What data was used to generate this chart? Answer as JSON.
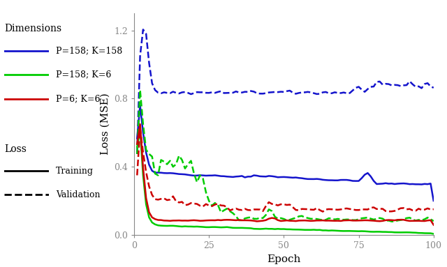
{
  "xlabel": "Epoch",
  "ylabel": "Loss (MSE)",
  "xlim": [
    0,
    100
  ],
  "ylim": [
    0.0,
    1.3
  ],
  "yticks": [
    0.0,
    0.4,
    0.8,
    1.2
  ],
  "xticks": [
    0,
    25,
    50,
    75,
    100
  ],
  "background_color": "#ffffff",
  "colors": {
    "blue": "#1414cc",
    "green": "#00cc00",
    "red": "#cc0000"
  },
  "legend": {
    "dimensions_title": "Dimensions",
    "loss_title": "Loss",
    "dim_labels": [
      "P=158; K=158",
      "P=158; K=6",
      "P=6; K=6"
    ],
    "loss_labels": [
      "Training",
      "Validation"
    ]
  },
  "seed": 42,
  "figsize": [
    6.4,
    3.83
  ],
  "dpi": 100
}
